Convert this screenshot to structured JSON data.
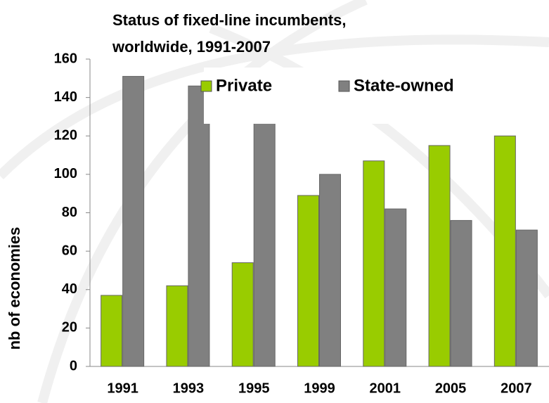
{
  "chart_data": {
    "type": "bar",
    "title_lines": [
      "Status of  fixed-line  incumbents,",
      "worldwide, 1991-2007"
    ],
    "y_label": "nb of economies",
    "categories": [
      "1991",
      "1993",
      "1995",
      "1999",
      "2001",
      "2005",
      "2007"
    ],
    "series": [
      {
        "name": "Private",
        "color": "#99cc00",
        "values": [
          37,
          42,
          54,
          89,
          107,
          115,
          120
        ]
      },
      {
        "name": "State-owned",
        "color": "#808080",
        "values": [
          151,
          146,
          140,
          100,
          82,
          76,
          71
        ]
      }
    ],
    "ylim": [
      0,
      160
    ],
    "yticks": [
      0,
      20,
      40,
      60,
      80,
      100,
      120,
      140,
      160
    ]
  }
}
